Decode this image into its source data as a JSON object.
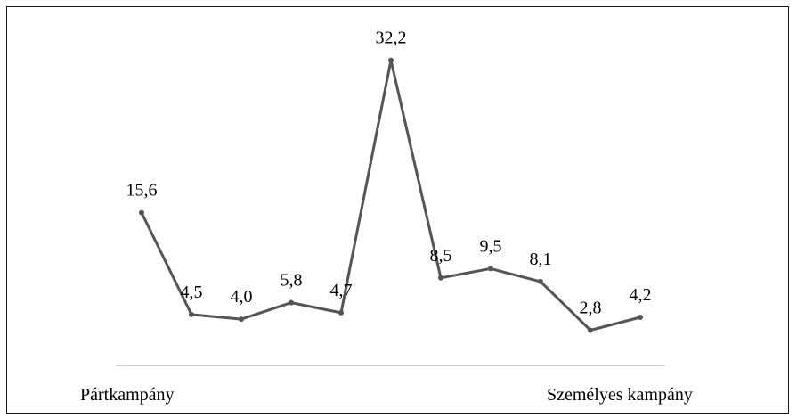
{
  "chart_data": {
    "type": "line",
    "title": "",
    "xlabel_left": "Pártkampány",
    "xlabel_right": "Személyes kampány",
    "ylabel": "",
    "x": [
      1,
      2,
      3,
      4,
      5,
      6,
      7,
      8,
      9,
      10,
      11
    ],
    "value_labels": [
      "15,6",
      "4,5",
      "4,0",
      "5,8",
      "4,7",
      "32,2",
      "8,5",
      "9,5",
      "8,1",
      "2,8",
      "4,2"
    ],
    "series": [
      {
        "values": [
          15.6,
          4.5,
          4.0,
          5.8,
          4.7,
          32.2,
          8.5,
          9.5,
          8.1,
          2.8,
          4.2
        ]
      }
    ],
    "grid": false,
    "legend": "none",
    "colors": {
      "line": "#555555",
      "axis": "#999999",
      "border": "#1a1a1a"
    }
  }
}
